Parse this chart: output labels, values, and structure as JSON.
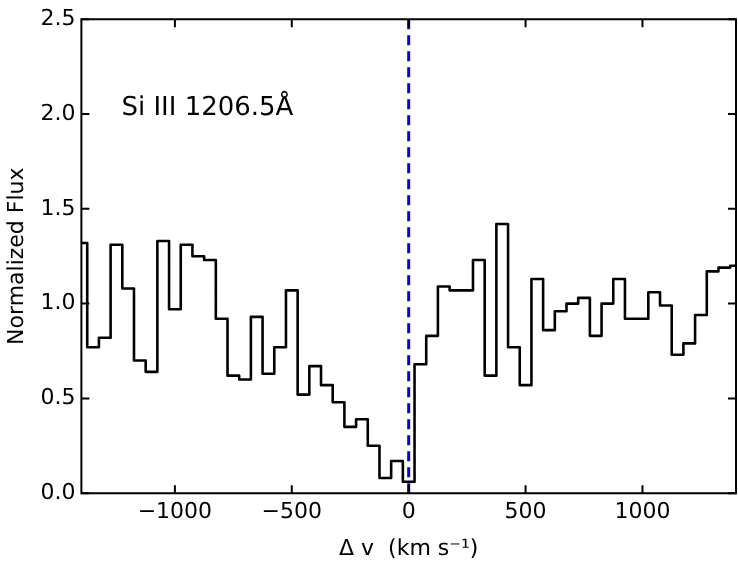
{
  "chart_data": {
    "type": "step",
    "xlabel": "Δ v  (km s⁻¹)",
    "ylabel": "Normalized Flux",
    "annotations": [
      "Si III 1206.5Å"
    ],
    "x": [
      -1400,
      -1350,
      -1300,
      -1250,
      -1200,
      -1150,
      -1100,
      -1050,
      -1000,
      -950,
      -900,
      -850,
      -800,
      -750,
      -700,
      -650,
      -600,
      -550,
      -500,
      -450,
      -400,
      -350,
      -300,
      -250,
      -200,
      -150,
      -100,
      -50,
      0,
      50,
      100,
      150,
      200,
      250,
      300,
      350,
      400,
      450,
      500,
      550,
      600,
      650,
      700,
      750,
      800,
      850,
      900,
      950,
      1000,
      1050,
      1100,
      1150,
      1200,
      1250,
      1300,
      1350,
      1400
    ],
    "series": [
      {
        "color": "#000000",
        "values": [
          1.32,
          0.77,
          0.82,
          1.31,
          1.08,
          0.7,
          0.64,
          1.33,
          0.97,
          1.31,
          1.25,
          1.23,
          0.92,
          0.62,
          0.6,
          0.93,
          0.63,
          0.77,
          1.07,
          0.52,
          0.67,
          0.57,
          0.48,
          0.35,
          0.39,
          0.25,
          0.08,
          0.17,
          0.06,
          0.68,
          0.83,
          1.09,
          1.07,
          1.07,
          1.23,
          0.62,
          1.42,
          0.77,
          0.57,
          1.13,
          0.86,
          0.96,
          1.0,
          1.03,
          0.83,
          1.0,
          1.13,
          0.92,
          0.92,
          1.06,
          0.99,
          0.73,
          0.79,
          0.94,
          1.17,
          1.19,
          1.2
        ]
      }
    ],
    "xlim": [
      -1400,
      1400
    ],
    "ylim": [
      0,
      2.5
    ],
    "xticks": [
      {
        "value": -1000,
        "label": "−1000"
      },
      {
        "value": -500,
        "label": "−500"
      },
      0,
      500,
      1000
    ],
    "yticks": [
      {
        "value": 0,
        "label": "0.0"
      },
      {
        "value": 0.5,
        "label": "0.5"
      },
      {
        "value": 1,
        "label": "1.0"
      },
      {
        "value": 1.5,
        "label": "1.5"
      },
      {
        "value": 2,
        "label": "2.0"
      },
      {
        "value": 2.5,
        "label": "2.5"
      }
    ],
    "ref_lines": [
      {
        "axis": "x",
        "value": 0,
        "color": "#0000cc",
        "line_style": "dashed"
      }
    ],
    "grid": false,
    "legend": false
  }
}
